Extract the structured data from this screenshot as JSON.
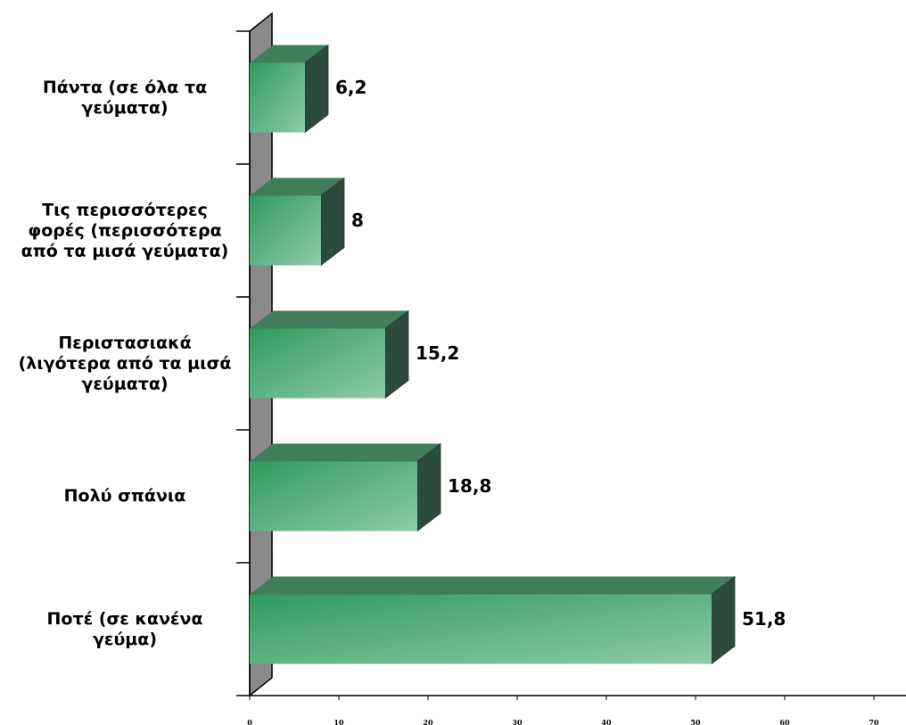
{
  "chart_data": {
    "type": "bar",
    "orientation": "horizontal",
    "three_d": true,
    "categories": [
      "Πάντα (σε όλα τα\nγεύματα)",
      "Τις περισσότερες\nφορές (περισσότερα\nαπό τα μισά γεύματα)",
      "Περιστασιακά\n(λιγότερα από τα μισά\nγεύματα)",
      "Πολύ σπάνια",
      "Ποτέ (σε κανένα\nγεύμα)"
    ],
    "values": [
      6.2,
      8,
      15.2,
      18.8,
      51.8
    ],
    "value_labels": [
      "6,2",
      "8",
      "15,2",
      "18,8",
      "51,8"
    ],
    "color": "#3aa56b",
    "xlim": [
      0,
      70
    ],
    "xticks": [
      0,
      10,
      20,
      30,
      40,
      50,
      60,
      70
    ]
  }
}
